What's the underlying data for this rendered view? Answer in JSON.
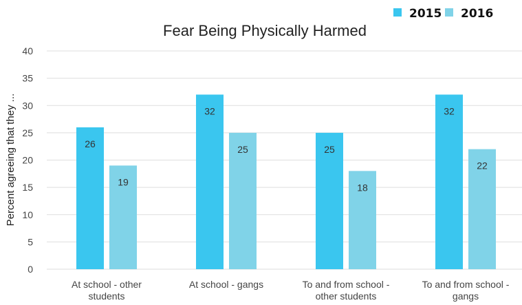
{
  "chart_data": {
    "type": "bar",
    "title": "Fear Being Physically Harmed",
    "xlabel": "",
    "ylabel": "Percent agreeing that they ...",
    "ylim": [
      0,
      40
    ],
    "yticks": [
      0,
      5,
      10,
      15,
      20,
      25,
      30,
      35,
      40
    ],
    "grid": true,
    "legend_position": "top-right",
    "categories": [
      [
        "At school - other",
        "students"
      ],
      [
        "At school - gangs"
      ],
      [
        "To and from school -",
        "other students"
      ],
      [
        "To and from school -",
        "gangs"
      ]
    ],
    "series": [
      {
        "name": "2015",
        "color": "#3ac6ef",
        "values": [
          26,
          32,
          25,
          32
        ]
      },
      {
        "name": "2016",
        "color": "#80d3e8",
        "values": [
          19,
          25,
          18,
          22
        ]
      }
    ]
  }
}
